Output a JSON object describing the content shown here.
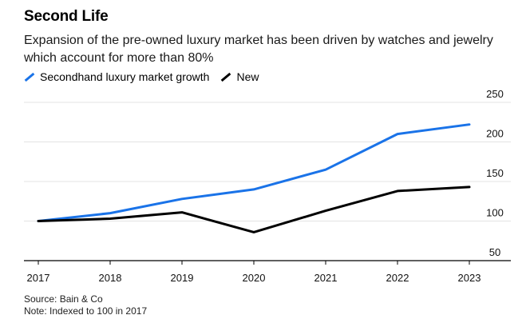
{
  "header": {
    "title": "Second Life",
    "subtitle": "Expansion of the pre-owned luxury market has been driven by watches and jewelry which account for more than 80%"
  },
  "legend": [
    {
      "label": "Secondhand luxury market growth",
      "color": "#1a73e8"
    },
    {
      "label": "New",
      "color": "#000000"
    }
  ],
  "footer": {
    "source": "Source: Bain & Co",
    "note": "Note: Indexed to 100 in 2017"
  },
  "chart_data": {
    "type": "line",
    "title": "Second Life",
    "categories": [
      "2017",
      "2018",
      "2019",
      "2020",
      "2021",
      "2022",
      "2023"
    ],
    "yticks": [
      "50",
      "100",
      "150",
      "200",
      "250"
    ],
    "ylim": [
      50,
      250
    ],
    "grid": true,
    "series": [
      {
        "name": "Secondhand luxury market growth",
        "color": "#1a73e8",
        "values": [
          100,
          110,
          128,
          140,
          165,
          210,
          222
        ]
      },
      {
        "name": "New",
        "color": "#000000",
        "values": [
          100,
          103,
          111,
          86,
          113,
          138,
          143
        ]
      }
    ]
  }
}
